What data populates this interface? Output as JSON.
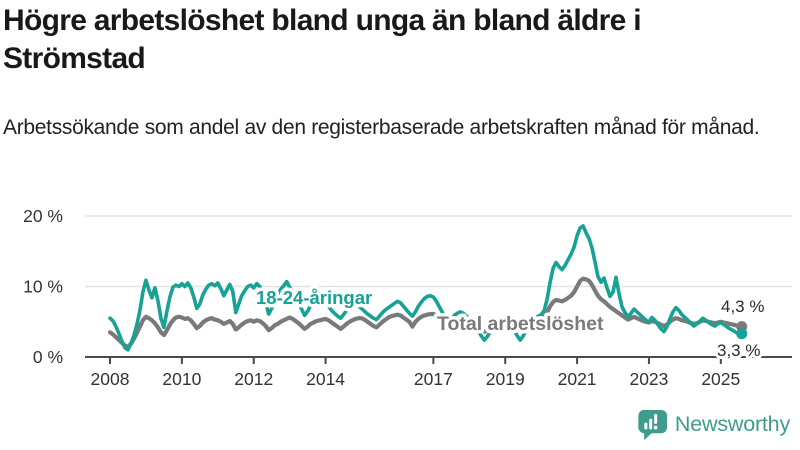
{
  "title": "Högre arbetslöshet bland unga än bland äldre i Strömstad",
  "subtitle": "Arbetssökande som andel av den registerbaserade arbetskraften månad för månad.",
  "footer": {
    "brand": "Newsworthy",
    "logo_icon": "newsworthy-speech-bubble-chart-icon",
    "logo_color": "#3f9b8e"
  },
  "chart_data": {
    "type": "line",
    "title": "Högre arbetslöshet bland unga än bland äldre i Strömstad",
    "frequency": "monthly",
    "x_start": {
      "year": 2008,
      "month": 1
    },
    "x_end": {
      "year": 2025,
      "month": 8
    },
    "x_ticks": [
      2008,
      2010,
      2012,
      2014,
      2017,
      2019,
      2021,
      2023,
      2025
    ],
    "y_ticks": [
      {
        "value": 0,
        "label": "0 %"
      },
      {
        "value": 10,
        "label": "10 %"
      },
      {
        "value": 20,
        "label": "20 %"
      }
    ],
    "ylim": [
      0,
      20
    ],
    "grid": "horizontal",
    "legend_position": "inline-labels",
    "series": [
      {
        "name": "18-24-åringar",
        "color": "#17a295",
        "end_label": "3,3 %",
        "end_value": 3.3,
        "values": [
          5.5,
          5.1,
          4.3,
          3.3,
          2.2,
          1.3,
          1.0,
          1.9,
          3.1,
          4.6,
          6.6,
          9.2,
          10.9,
          9.5,
          8.4,
          9.8,
          8.0,
          5.5,
          4.2,
          6.5,
          8.5,
          9.9,
          10.2,
          10.0,
          10.4,
          10.0,
          10.5,
          9.8,
          8.5,
          6.9,
          7.5,
          8.8,
          9.6,
          10.2,
          10.4,
          10.1,
          10.5,
          9.7,
          8.7,
          9.5,
          10.3,
          9.3,
          6.3,
          7.5,
          8.7,
          9.4,
          10.0,
          10.2,
          9.8,
          10.4,
          10.0,
          9.0,
          7.7,
          6.1,
          6.9,
          8.2,
          8.9,
          9.6,
          10.1,
          10.7,
          9.9,
          9.1,
          8.3,
          7.6,
          6.8,
          5.9,
          6.5,
          7.3,
          7.8,
          8.3,
          8.7,
          9.0,
          7.8,
          7.2,
          6.6,
          6.2,
          5.8,
          5.5,
          6.0,
          6.6,
          7.0,
          7.3,
          7.5,
          7.2,
          6.9,
          6.5,
          6.1,
          5.8,
          5.5,
          5.3,
          5.8,
          6.3,
          6.7,
          7.0,
          7.3,
          7.6,
          7.9,
          7.7,
          7.2,
          6.7,
          6.2,
          5.8,
          6.4,
          7.2,
          7.8,
          8.3,
          8.6,
          8.7,
          8.5,
          7.9,
          7.1,
          6.3,
          5.5,
          4.7,
          5.3,
          5.9,
          6.2,
          6.4,
          6.2,
          5.8,
          5.4,
          5.0,
          4.4,
          3.7,
          3.0,
          2.4,
          2.9,
          3.6,
          4.2,
          4.7,
          5.1,
          5.4,
          5.6,
          5.2,
          4.6,
          3.8,
          3.0,
          2.4,
          3.0,
          3.8,
          4.4,
          5.0,
          5.5,
          5.8,
          6.0,
          6.6,
          8.2,
          10.6,
          12.6,
          13.4,
          12.8,
          12.4,
          13.0,
          13.8,
          14.6,
          15.6,
          17.2,
          18.3,
          18.6,
          17.6,
          16.8,
          15.4,
          13.4,
          11.4,
          10.6,
          11.2,
          9.8,
          8.6,
          9.2,
          11.3,
          9.0,
          7.1,
          6.3,
          5.7,
          6.2,
          6.8,
          6.4,
          6.0,
          5.6,
          5.2,
          5.0,
          5.6,
          5.2,
          4.6,
          4.0,
          3.6,
          4.3,
          5.4,
          6.4,
          7.0,
          6.6,
          6.0,
          5.6,
          5.2,
          4.8,
          4.4,
          4.7,
          5.1,
          5.5,
          5.2,
          4.9,
          4.6,
          4.4,
          4.7,
          4.9,
          4.6,
          4.3,
          4.0,
          3.8,
          3.5,
          3.3,
          3.3
        ]
      },
      {
        "name": "Total arbetslöshet",
        "color": "#7a7a7a",
        "end_label": "4,3 %",
        "end_value": 4.3,
        "values": [
          3.5,
          3.2,
          2.8,
          2.4,
          2.0,
          1.6,
          1.4,
          1.9,
          2.6,
          3.4,
          4.3,
          5.2,
          5.7,
          5.5,
          5.2,
          4.8,
          4.2,
          3.5,
          3.1,
          3.8,
          4.6,
          5.2,
          5.6,
          5.7,
          5.6,
          5.4,
          5.5,
          5.2,
          4.7,
          4.1,
          4.4,
          4.9,
          5.2,
          5.4,
          5.5,
          5.3,
          5.2,
          5.0,
          4.7,
          4.9,
          5.1,
          4.7,
          3.9,
          4.2,
          4.6,
          4.9,
          5.1,
          5.2,
          5.0,
          5.2,
          5.1,
          4.8,
          4.4,
          3.8,
          4.1,
          4.5,
          4.7,
          5.0,
          5.2,
          5.4,
          5.6,
          5.4,
          5.1,
          4.8,
          4.4,
          4.0,
          4.3,
          4.7,
          4.9,
          5.1,
          5.2,
          5.3,
          5.4,
          5.2,
          4.9,
          4.6,
          4.3,
          4.0,
          4.3,
          4.7,
          5.0,
          5.2,
          5.4,
          5.5,
          5.5,
          5.3,
          5.0,
          4.7,
          4.4,
          4.2,
          4.6,
          5.0,
          5.3,
          5.6,
          5.8,
          5.9,
          6.0,
          5.9,
          5.6,
          5.3,
          5.0,
          4.3,
          5.0,
          5.4,
          5.7,
          5.9,
          6.0,
          6.1,
          6.1,
          5.9,
          5.6,
          5.2,
          4.8,
          4.5,
          4.7,
          5.0,
          5.1,
          5.2,
          5.1,
          5.0,
          4.9,
          4.7,
          4.4,
          4.1,
          3.8,
          3.6,
          3.8,
          4.1,
          4.3,
          4.5,
          4.6,
          4.7,
          4.8,
          4.6,
          4.4,
          4.2,
          4.0,
          3.9,
          4.1,
          4.4,
          4.6,
          4.8,
          5.0,
          5.2,
          5.4,
          5.6,
          6.3,
          7.2,
          7.8,
          8.1,
          8.0,
          7.9,
          8.1,
          8.4,
          8.7,
          9.2,
          10.0,
          10.8,
          11.1,
          11.0,
          10.8,
          10.2,
          9.4,
          8.7,
          8.2,
          7.9,
          7.5,
          7.1,
          6.8,
          6.5,
          6.2,
          5.9,
          5.6,
          5.3,
          5.5,
          5.7,
          5.5,
          5.3,
          5.1,
          5.0,
          4.9,
          5.1,
          5.0,
          4.8,
          4.6,
          4.4,
          4.6,
          5.0,
          5.3,
          5.5,
          5.4,
          5.2,
          5.1,
          5.0,
          4.8,
          4.7,
          4.8,
          5.0,
          5.2,
          5.1,
          5.0,
          4.9,
          4.8,
          4.9,
          5.0,
          4.9,
          4.8,
          4.7,
          4.6,
          4.5,
          4.4,
          4.3
        ]
      }
    ],
    "colors": {
      "axis": "#4a4a4a",
      "gridline": "#e3e3e3",
      "tick_label": "#333333",
      "end_label": "#2b2b2b"
    }
  }
}
